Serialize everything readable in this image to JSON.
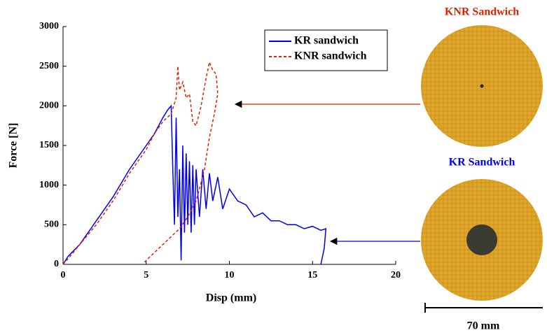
{
  "chart_data": {
    "type": "line",
    "x_label": "Disp (mm)",
    "y_label": "Force [N]",
    "xlim": [
      0,
      20
    ],
    "xticks": [
      0,
      5,
      10,
      15,
      20
    ],
    "ylim": [
      0,
      3000
    ],
    "yticks": [
      0,
      500,
      1000,
      1500,
      2000,
      2500,
      3000
    ],
    "legend": "upper right",
    "series": [
      {
        "name": "KR sandwich",
        "color": "#0000ee",
        "dash": false,
        "x": [
          0,
          0.3,
          1,
          2,
          3,
          4,
          5,
          5.5,
          6,
          6.3,
          6.5,
          6.6,
          6.7,
          6.8,
          6.9,
          7.0,
          7.1,
          7.2,
          7.3,
          7.4,
          7.5,
          7.6,
          7.7,
          7.8,
          7.9,
          8.0,
          8.2,
          8.4,
          8.6,
          8.8,
          9.0,
          9.3,
          9.6,
          10,
          10.5,
          11,
          11.5,
          12,
          12.5,
          13,
          13.5,
          14,
          14.5,
          15,
          15.5,
          15.8,
          15.7,
          15.5
        ],
        "values": [
          0,
          100,
          250,
          550,
          850,
          1200,
          1500,
          1650,
          1850,
          1950,
          2000,
          1200,
          500,
          1850,
          600,
          1200,
          50,
          1500,
          400,
          1400,
          500,
          1300,
          400,
          1250,
          500,
          1200,
          600,
          1200,
          700,
          1150,
          800,
          1100,
          700,
          950,
          800,
          750,
          600,
          650,
          550,
          550,
          500,
          500,
          450,
          480,
          430,
          450,
          200,
          0
        ]
      },
      {
        "name": "KNR sandwich",
        "color": "#dd2200",
        "dash": true,
        "x": [
          0,
          0.5,
          1,
          2,
          3,
          4,
          5,
          5.5,
          6,
          6.5,
          6.8,
          6.9,
          7.0,
          7.2,
          7.4,
          7.6,
          7.8,
          8.0,
          8.3,
          8.6,
          8.8,
          9.0,
          9.2,
          9.3,
          9.1,
          8.8,
          8.5,
          8.2,
          8.0,
          7.5,
          7.0,
          6.5,
          6.0,
          5.5,
          5.0,
          4.8
        ],
        "values": [
          0,
          120,
          250,
          500,
          800,
          1150,
          1450,
          1650,
          1800,
          1900,
          2100,
          2500,
          2200,
          2300,
          2100,
          2150,
          1800,
          1750,
          2000,
          2350,
          2550,
          2450,
          2400,
          2150,
          1900,
          1600,
          1200,
          950,
          800,
          600,
          450,
          350,
          250,
          150,
          50,
          0
        ]
      }
    ],
    "annotations": [
      "KNR Sandwich",
      "KR Sandwich",
      "70 mm"
    ]
  }
}
